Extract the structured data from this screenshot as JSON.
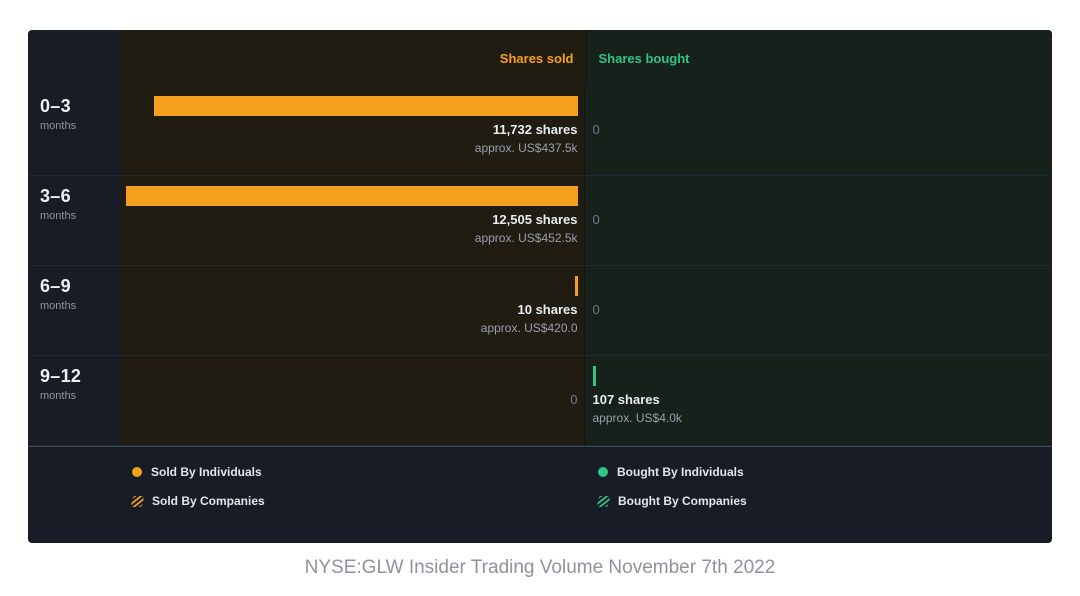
{
  "colors": {
    "sold": "#f5a01c",
    "bought": "#2fc583",
    "panel": "#171c26",
    "sold_col": "#201c12",
    "bought_col": "#16211b"
  },
  "header": {
    "sold": "Shares sold",
    "bought": "Shares bought"
  },
  "rows": [
    {
      "period": "0–3",
      "unit": "months",
      "sold": {
        "primary": "11,732 shares",
        "secondary": "approx. US$437.5k"
      },
      "bought": {
        "primary": "0",
        "secondary": ""
      }
    },
    {
      "period": "3–6",
      "unit": "months",
      "sold": {
        "primary": "12,505 shares",
        "secondary": "approx. US$452.5k"
      },
      "bought": {
        "primary": "0",
        "secondary": ""
      }
    },
    {
      "period": "6–9",
      "unit": "months",
      "sold": {
        "primary": "10 shares",
        "secondary": "approx. US$420.0"
      },
      "bought": {
        "primary": "0",
        "secondary": ""
      }
    },
    {
      "period": "9–12",
      "unit": "months",
      "sold": {
        "primary": "0",
        "secondary": ""
      },
      "bought": {
        "primary": "107 shares",
        "secondary": "approx. US$4.0k"
      }
    }
  ],
  "legend": [
    {
      "label": "Sold By Individuals"
    },
    {
      "label": "Sold By Companies"
    },
    {
      "label": "Bought By Individuals"
    },
    {
      "label": "Bought By Companies"
    }
  ],
  "caption": "NYSE:GLW Insider Trading Volume November 7th 2022",
  "chart_data": {
    "type": "bar",
    "orientation": "horizontal",
    "title": "NYSE:GLW Insider Trading Volume November 7th 2022",
    "categories": [
      "0–3 months",
      "3–6 months",
      "6–9 months",
      "9–12 months"
    ],
    "series": [
      {
        "name": "Shares sold",
        "color": "#f5a01c",
        "values": [
          11732,
          12505,
          10,
          0
        ],
        "approx_usd": [
          "US$437.5k",
          "US$452.5k",
          "US$420.0",
          null
        ]
      },
      {
        "name": "Shares bought",
        "color": "#2fc583",
        "values": [
          0,
          0,
          0,
          107
        ],
        "approx_usd": [
          null,
          null,
          null,
          "US$4.0k"
        ]
      }
    ],
    "legend_entries": [
      "Sold By Individuals",
      "Sold By Companies",
      "Bought By Individuals",
      "Bought By Companies"
    ],
    "legend_position": "bottom",
    "grid": false
  }
}
